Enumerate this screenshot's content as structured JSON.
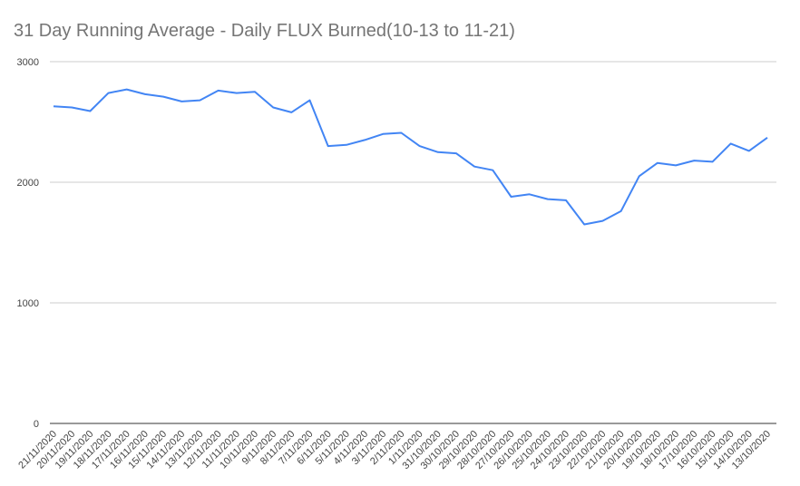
{
  "chart_data": {
    "type": "line",
    "title": "31 Day Running Average - Daily FLUX Burned(10-13 to 11-21)",
    "categories": [
      "21/11/2020",
      "20/11/2020",
      "19/11/2020",
      "18/11/2020",
      "17/11/2020",
      "16/11/2020",
      "15/11/2020",
      "14/11/2020",
      "13/11/2020",
      "12/11/2020",
      "11/11/2020",
      "10/11/2020",
      "9/11/2020",
      "8/11/2020",
      "7/11/2020",
      "6/11/2020",
      "5/11/2020",
      "4/11/2020",
      "3/11/2020",
      "2/11/2020",
      "1/11/2020",
      "31/10/2020",
      "30/10/2020",
      "29/10/2020",
      "28/10/2020",
      "27/10/2020",
      "26/10/2020",
      "25/10/2020",
      "24/10/2020",
      "23/10/2020",
      "22/10/2020",
      "21/10/2020",
      "20/10/2020",
      "19/10/2020",
      "18/10/2020",
      "17/10/2020",
      "16/10/2020",
      "15/10/2020",
      "14/10/2020",
      "13/10/2020"
    ],
    "values": [
      2630,
      2620,
      2590,
      2740,
      2770,
      2730,
      2710,
      2670,
      2680,
      2760,
      2740,
      2750,
      2620,
      2580,
      2680,
      2300,
      2310,
      2350,
      2400,
      2410,
      2300,
      2250,
      2240,
      2130,
      2100,
      1880,
      1900,
      1860,
      1850,
      1650,
      1680,
      1760,
      2050,
      2160,
      2140,
      2180,
      2170,
      2320,
      2260,
      2370
    ],
    "color": "#4285f4",
    "ylim": [
      0,
      3000
    ],
    "yticks": [
      0,
      1000,
      2000,
      3000
    ],
    "grid": true
  }
}
